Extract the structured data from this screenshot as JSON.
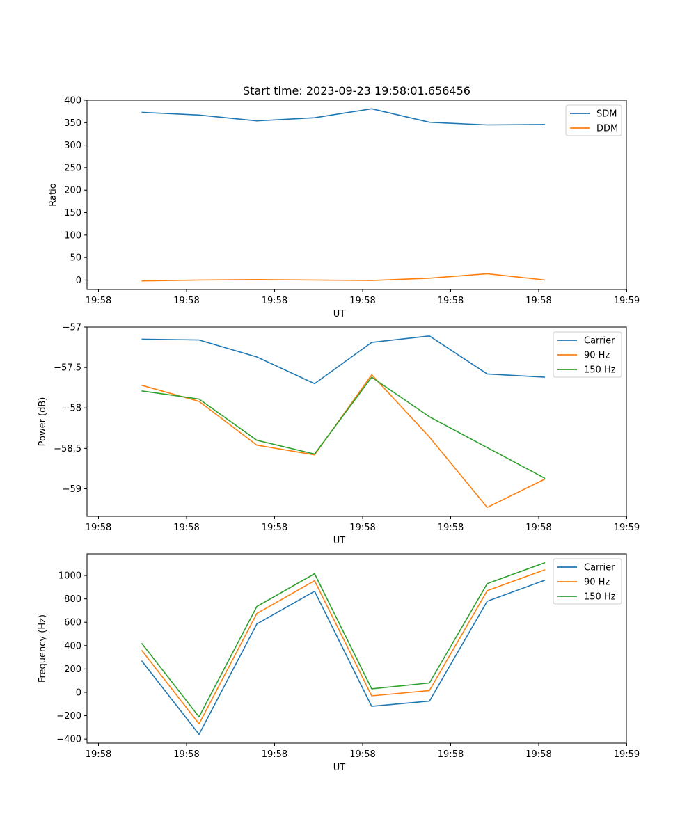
{
  "figure_title": "Start time: 2023-09-23 19:58:01.656456",
  "colors": {
    "blue": "#1f77b4",
    "orange": "#ff7f0e",
    "green": "#2ca02c"
  },
  "chart_data": [
    {
      "type": "line",
      "xlabel": "UT",
      "ylabel": "Ratio",
      "x_tick_labels": [
        "19:58",
        "19:58",
        "19:58",
        "19:58",
        "19:58",
        "19:58",
        "19:58",
        "19:59"
      ],
      "ylim": [
        -21,
        400
      ],
      "y_ticks": [
        0,
        50,
        100,
        150,
        200,
        250,
        300,
        350,
        400
      ],
      "legend": "top-right",
      "series": [
        {
          "name": "SDM",
          "color": "#1f77b4",
          "values": [
            373,
            367,
            354,
            361,
            381,
            351,
            345,
            346
          ]
        },
        {
          "name": "DDM",
          "color": "#ff7f0e",
          "values": [
            -2,
            0,
            1,
            0,
            -1,
            4,
            14,
            0
          ]
        }
      ]
    },
    {
      "type": "line",
      "xlabel": "UT",
      "ylabel": "Power (dB)",
      "x_tick_labels": [
        "19:58",
        "19:58",
        "19:58",
        "19:58",
        "19:58",
        "19:58",
        "19:58",
        "19:59"
      ],
      "ylim": [
        -59.34,
        -57.0
      ],
      "y_ticks": [
        -59.0,
        -58.5,
        -58.0,
        -57.5,
        -57.0
      ],
      "legend": "top-right",
      "series": [
        {
          "name": "Carrier",
          "color": "#1f77b4",
          "values": [
            -57.15,
            -57.16,
            -57.37,
            -57.7,
            -57.19,
            -57.11,
            -57.58,
            -57.62
          ]
        },
        {
          "name": "90 Hz",
          "color": "#ff7f0e",
          "values": [
            -57.72,
            -57.92,
            -58.46,
            -58.58,
            -57.59,
            -58.36,
            -59.23,
            -58.88
          ]
        },
        {
          "name": "150 Hz",
          "color": "#2ca02c",
          "values": [
            -57.79,
            -57.89,
            -58.4,
            -58.57,
            -57.62,
            -58.11,
            -58.49,
            -58.87
          ]
        }
      ]
    },
    {
      "type": "line",
      "xlabel": "UT",
      "ylabel": "Frequency (Hz)",
      "x_tick_labels": [
        "19:58",
        "19:58",
        "19:58",
        "19:58",
        "19:58",
        "19:58",
        "19:58",
        "19:59"
      ],
      "ylim": [
        -435,
        1185
      ],
      "y_ticks": [
        -400,
        -200,
        0,
        200,
        400,
        600,
        800,
        1000
      ],
      "legend": "top-right",
      "series": [
        {
          "name": "Carrier",
          "color": "#1f77b4",
          "values": [
            270,
            -360,
            585,
            865,
            -120,
            -75,
            780,
            960
          ]
        },
        {
          "name": "90 Hz",
          "color": "#ff7f0e",
          "values": [
            360,
            -270,
            675,
            955,
            -30,
            15,
            870,
            1050
          ]
        },
        {
          "name": "150 Hz",
          "color": "#2ca02c",
          "values": [
            420,
            -210,
            735,
            1015,
            30,
            80,
            930,
            1110
          ]
        }
      ]
    }
  ]
}
